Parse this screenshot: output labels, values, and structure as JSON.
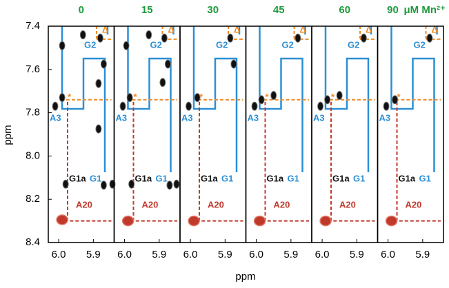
{
  "chart_data": {
    "type": "scatter",
    "unit_label": "μM Mn²⁺",
    "y_label": "ppm",
    "x_label": "ppm",
    "xlim": [
      6.03,
      5.84
    ],
    "ylim": [
      8.4,
      7.4
    ],
    "xticks": [
      {
        "value": 6,
        "label": "6.0"
      },
      5.9
    ],
    "yticks": [
      7.4,
      7.6,
      7.8,
      {
        "value": 8,
        "label": "8.0"
      },
      8.2,
      8.4
    ],
    "header_color": "#1e9a3c",
    "peak_color": "#111111",
    "a20_color": "#c0392b",
    "labels": {
      "g2": "G2",
      "a3": "A3",
      "g1a": "G1a",
      "g1": "G1",
      "a20": "A20",
      "star": "*",
      "tri": "Δ"
    },
    "panels": [
      {
        "title": "0",
        "peaks": {
          "x": [
            5.99,
            5.88,
            5.93,
            5.87,
            5.885,
            5.99,
            6.01,
            5.885,
            5.98,
            5.87,
            5.845
          ],
          "y": [
            7.49,
            7.455,
            7.44,
            7.575,
            7.665,
            7.73,
            7.77,
            7.875,
            8.13,
            8.135,
            8.13
          ]
        },
        "a20": {
          "x": 5.99,
          "y": 8.295
        }
      },
      {
        "title": "15",
        "peaks": {
          "x": [
            5.995,
            5.885,
            5.93,
            5.875,
            5.89,
            5.985,
            6.005,
            5.98,
            5.87,
            5.85
          ],
          "y": [
            7.49,
            7.455,
            7.44,
            7.575,
            7.66,
            7.73,
            7.77,
            8.13,
            8.135,
            8.13
          ]
        },
        "a20": {
          "x": 5.99,
          "y": 8.3
        }
      },
      {
        "title": "30",
        "peaks": {
          "x": [
            5.885,
            5.875,
            5.98,
            6.005
          ],
          "y": [
            7.455,
            7.575,
            7.73,
            7.77
          ]
        },
        "a20": {
          "x": 5.99,
          "y": 8.3
        }
      },
      {
        "title": "45",
        "peaks": {
          "x": [
            5.88,
            5.95,
            5.985,
            6.005
          ],
          "y": [
            7.455,
            7.72,
            7.74,
            7.77
          ]
        },
        "a20": {
          "x": 5.99,
          "y": 8.3
        }
      },
      {
        "title": "60",
        "peaks": {
          "x": [
            5.88,
            5.95,
            5.985,
            6.005
          ],
          "y": [
            7.455,
            7.72,
            7.74,
            7.77
          ]
        },
        "a20": {
          "x": 5.99,
          "y": 8.3
        }
      },
      {
        "title": "90",
        "peaks": {
          "x": [
            5.88,
            5.98,
            6.005
          ],
          "y": [
            7.455,
            7.74,
            7.77
          ]
        },
        "a20": {
          "x": 5.99,
          "y": 8.3
        }
      }
    ]
  }
}
